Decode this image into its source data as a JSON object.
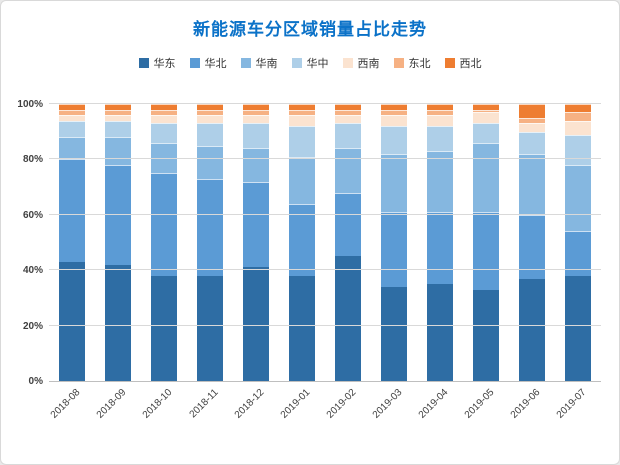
{
  "title": "新能源车分区域销量占比走势",
  "title_color": "#0b72c8",
  "chart_data": {
    "type": "bar",
    "stacked": true,
    "percent": true,
    "title": "新能源车分区域销量占比走势",
    "legend_position": "top",
    "grid": true,
    "ylim": [
      0,
      100
    ],
    "yticks": [
      0,
      20,
      40,
      60,
      80,
      100
    ],
    "ytick_suffix": "%",
    "categories": [
      "2018-08",
      "2018-09",
      "2018-10",
      "2018-11",
      "2018-12",
      "2019-01",
      "2019-02",
      "2019-03",
      "2019-04",
      "2019-05",
      "2019-06",
      "2019-07"
    ],
    "series": [
      {
        "name": "华东",
        "color": "#2e6da4",
        "values": [
          43,
          42,
          38,
          38,
          41,
          38,
          45,
          34,
          35,
          33,
          37,
          38
        ]
      },
      {
        "name": "华北",
        "color": "#5b9bd5",
        "values": [
          37,
          36,
          37,
          35,
          31,
          26,
          23,
          27,
          26,
          28,
          23,
          16
        ]
      },
      {
        "name": "华南",
        "color": "#85b7e0",
        "values": [
          8,
          10,
          11,
          12,
          12,
          17,
          16,
          21,
          22,
          25,
          22,
          24
        ]
      },
      {
        "name": "华中",
        "color": "#aecfe8",
        "values": [
          6,
          6,
          7,
          8,
          9,
          11,
          9,
          10,
          9,
          7,
          8,
          11
        ]
      },
      {
        "name": "西南",
        "color": "#fbe3d0",
        "values": [
          2,
          2,
          3,
          3,
          3,
          4,
          3,
          4,
          4,
          4,
          3,
          5
        ]
      },
      {
        "name": "东北",
        "color": "#f6b183",
        "values": [
          2,
          2,
          2,
          2,
          2,
          2,
          2,
          2,
          2,
          1,
          2,
          3
        ]
      },
      {
        "name": "西北",
        "color": "#ee7d31",
        "values": [
          2,
          2,
          2,
          2,
          2,
          2,
          2,
          2,
          2,
          2,
          5,
          3
        ]
      }
    ]
  }
}
